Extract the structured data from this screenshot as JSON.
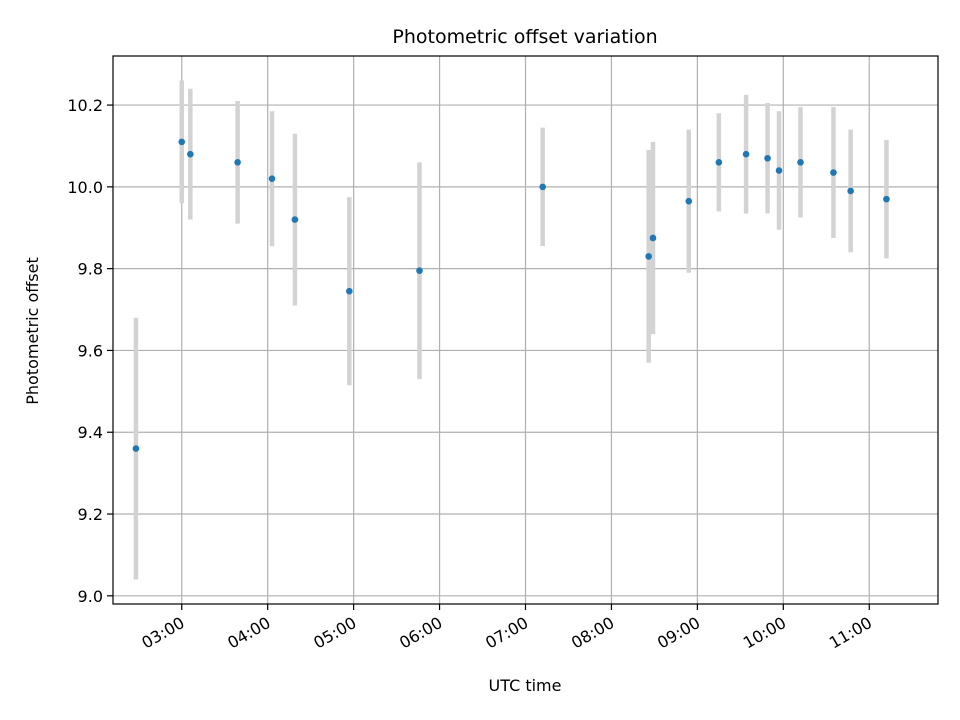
{
  "chart_data": {
    "type": "scatter",
    "title": "Photometric offset variation",
    "xlabel": "UTC time",
    "ylabel": "Photometric offset",
    "x_ticks": [
      "03:00",
      "04:00",
      "05:00",
      "06:00",
      "07:00",
      "08:00",
      "09:00",
      "10:00",
      "11:00"
    ],
    "y_ticks": [
      "9.0",
      "9.2",
      "9.4",
      "9.6",
      "9.8",
      "10.0",
      "10.2"
    ],
    "xlim": [
      "02:12",
      "11:48"
    ],
    "ylim": [
      8.98,
      10.32
    ],
    "grid": true,
    "marker_color": "#1f77b4",
    "errorbar_color": "#d3d3d3",
    "series": [
      {
        "points": [
          {
            "x": "02:28",
            "y": 9.36,
            "err": 0.32
          },
          {
            "x": "03:00",
            "y": 10.11,
            "err": 0.15
          },
          {
            "x": "03:06",
            "y": 10.08,
            "err": 0.16
          },
          {
            "x": "03:39",
            "y": 10.06,
            "err": 0.15
          },
          {
            "x": "04:03",
            "y": 10.02,
            "err": 0.165
          },
          {
            "x": "04:19",
            "y": 9.92,
            "err": 0.21
          },
          {
            "x": "04:57",
            "y": 9.745,
            "err": 0.23
          },
          {
            "x": "05:46",
            "y": 9.795,
            "err": 0.265
          },
          {
            "x": "07:12",
            "y": 10.0,
            "err": 0.145
          },
          {
            "x": "08:26",
            "y": 9.83,
            "err": 0.26
          },
          {
            "x": "08:29",
            "y": 9.875,
            "err": 0.235
          },
          {
            "x": "08:54",
            "y": 9.965,
            "err": 0.175
          },
          {
            "x": "09:15",
            "y": 10.06,
            "err": 0.12
          },
          {
            "x": "09:34",
            "y": 10.08,
            "err": 0.145
          },
          {
            "x": "09:49",
            "y": 10.07,
            "err": 0.135
          },
          {
            "x": "09:57",
            "y": 10.04,
            "err": 0.145
          },
          {
            "x": "10:12",
            "y": 10.06,
            "err": 0.135
          },
          {
            "x": "10:35",
            "y": 10.035,
            "err": 0.16
          },
          {
            "x": "10:47",
            "y": 9.99,
            "err": 0.15
          },
          {
            "x": "11:12",
            "y": 9.97,
            "err": 0.145
          }
        ]
      }
    ]
  }
}
